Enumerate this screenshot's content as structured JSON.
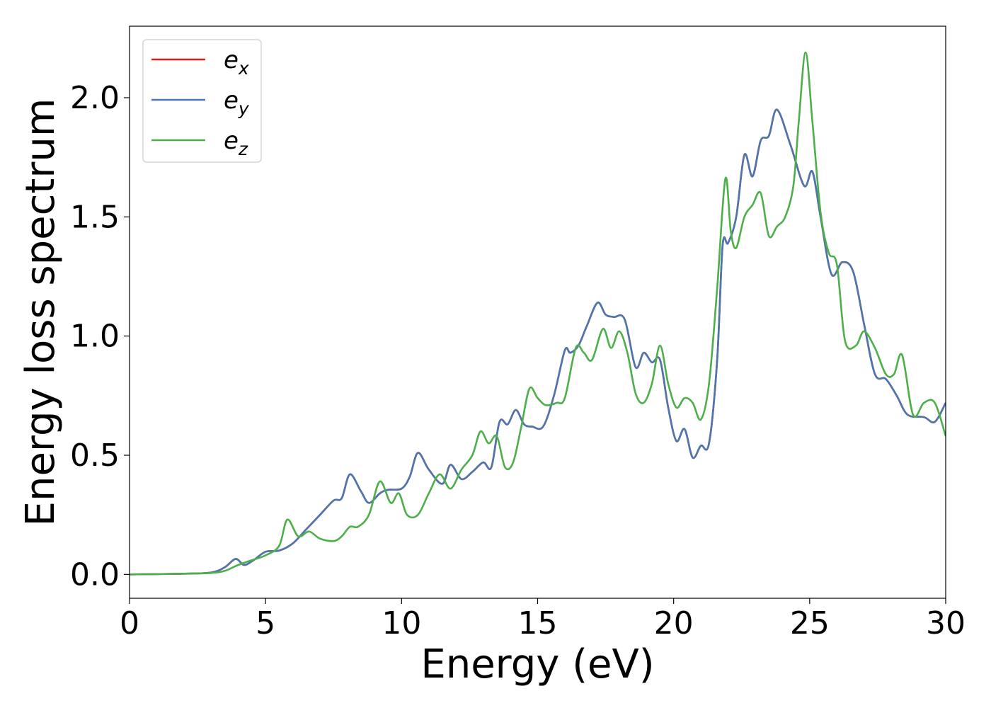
{
  "chart_data": {
    "type": "line",
    "xlabel": "Energy (eV)",
    "ylabel": "Energy loss spectrum",
    "xlim": [
      0,
      30
    ],
    "ylim": [
      -0.1,
      2.3
    ],
    "x_ticks": [
      0,
      5,
      10,
      15,
      20,
      25,
      30
    ],
    "x_tick_labels": [
      "0",
      "5",
      "10",
      "15",
      "20",
      "25",
      "30"
    ],
    "y_ticks": [
      0.0,
      0.5,
      1.0,
      1.5,
      2.0
    ],
    "y_tick_labels": [
      "0.0",
      "0.5",
      "1.0",
      "1.5",
      "2.0"
    ],
    "grid": false,
    "legend_position": "top-left",
    "series": [
      {
        "name": "e",
        "subscript": "x",
        "color": "#e41a1c",
        "x": [
          0,
          2,
          3,
          3.5,
          3.9,
          4.2,
          4.5,
          5,
          5.5,
          6,
          6.5,
          7,
          7.5,
          7.8,
          8.1,
          8.5,
          8.8,
          9.2,
          9.5,
          10,
          10.3,
          10.6,
          11,
          11.5,
          11.8,
          12.2,
          12.6,
          13,
          13.3,
          13.6,
          13.9,
          14.2,
          14.5,
          14.8,
          15.2,
          15.6,
          16,
          16.2,
          16.5,
          16.8,
          17.2,
          17.5,
          17.8,
          18.2,
          18.6,
          18.9,
          19.2,
          19.5,
          19.8,
          20.1,
          20.4,
          20.7,
          21.0,
          21.3,
          21.6,
          21.8,
          22.0,
          22.3,
          22.6,
          22.9,
          23.2,
          23.5,
          23.8,
          24.3,
          24.8,
          25.1,
          25.4,
          25.8,
          26.2,
          26.6,
          27.0,
          27.4,
          27.8,
          28.2,
          28.6,
          29.2,
          29.6,
          30
        ],
        "values": [
          0,
          0.003,
          0.008,
          0.03,
          0.065,
          0.04,
          0.055,
          0.095,
          0.1,
          0.13,
          0.19,
          0.25,
          0.31,
          0.32,
          0.42,
          0.35,
          0.3,
          0.34,
          0.355,
          0.36,
          0.41,
          0.51,
          0.44,
          0.38,
          0.46,
          0.4,
          0.43,
          0.47,
          0.45,
          0.64,
          0.63,
          0.69,
          0.63,
          0.62,
          0.62,
          0.75,
          0.94,
          0.93,
          0.96,
          1.04,
          1.14,
          1.09,
          1.08,
          1.07,
          0.87,
          0.93,
          0.89,
          0.9,
          0.7,
          0.56,
          0.61,
          0.49,
          0.54,
          0.55,
          0.9,
          1.38,
          1.39,
          1.5,
          1.76,
          1.67,
          1.82,
          1.84,
          1.95,
          1.8,
          1.63,
          1.69,
          1.5,
          1.26,
          1.31,
          1.27,
          1.05,
          0.84,
          0.82,
          0.75,
          0.67,
          0.66,
          0.64,
          0.72
        ]
      },
      {
        "name": "e",
        "subscript": "y",
        "color": "#4a77b0",
        "x": [
          0,
          2,
          3,
          3.5,
          3.9,
          4.2,
          4.5,
          5,
          5.5,
          6,
          6.5,
          7,
          7.5,
          7.8,
          8.1,
          8.5,
          8.8,
          9.2,
          9.5,
          10,
          10.3,
          10.6,
          11,
          11.5,
          11.8,
          12.2,
          12.6,
          13,
          13.3,
          13.6,
          13.9,
          14.2,
          14.5,
          14.8,
          15.2,
          15.6,
          16,
          16.2,
          16.5,
          16.8,
          17.2,
          17.5,
          17.8,
          18.2,
          18.6,
          18.9,
          19.2,
          19.5,
          19.8,
          20.1,
          20.4,
          20.7,
          21.0,
          21.3,
          21.6,
          21.8,
          22.0,
          22.3,
          22.6,
          22.9,
          23.2,
          23.5,
          23.8,
          24.3,
          24.8,
          25.1,
          25.4,
          25.8,
          26.2,
          26.6,
          27.0,
          27.4,
          27.8,
          28.2,
          28.6,
          29.2,
          29.6,
          30
        ],
        "values": [
          0,
          0.003,
          0.008,
          0.03,
          0.065,
          0.04,
          0.055,
          0.095,
          0.1,
          0.13,
          0.19,
          0.25,
          0.31,
          0.32,
          0.42,
          0.35,
          0.3,
          0.34,
          0.355,
          0.36,
          0.41,
          0.51,
          0.44,
          0.38,
          0.46,
          0.4,
          0.43,
          0.47,
          0.45,
          0.64,
          0.63,
          0.69,
          0.63,
          0.62,
          0.62,
          0.75,
          0.94,
          0.93,
          0.96,
          1.04,
          1.14,
          1.09,
          1.08,
          1.07,
          0.87,
          0.93,
          0.89,
          0.9,
          0.7,
          0.56,
          0.61,
          0.49,
          0.54,
          0.55,
          0.9,
          1.38,
          1.39,
          1.5,
          1.76,
          1.67,
          1.82,
          1.84,
          1.95,
          1.8,
          1.63,
          1.69,
          1.5,
          1.26,
          1.31,
          1.27,
          1.05,
          0.84,
          0.82,
          0.75,
          0.67,
          0.66,
          0.64,
          0.72
        ]
      },
      {
        "name": "e",
        "subscript": "z",
        "color": "#4daf4a",
        "x": [
          0,
          2,
          3,
          3.5,
          4,
          4.5,
          5,
          5.5,
          5.8,
          6.2,
          6.6,
          7,
          7.5,
          7.8,
          8.1,
          8.4,
          8.8,
          9.2,
          9.6,
          9.9,
          10.2,
          10.6,
          11,
          11.4,
          11.8,
          12.2,
          12.6,
          12.9,
          13.2,
          13.5,
          13.8,
          14.1,
          14.4,
          14.7,
          15.0,
          15.3,
          15.7,
          16.0,
          16.4,
          16.7,
          17.0,
          17.4,
          17.7,
          18.0,
          18.3,
          18.6,
          18.9,
          19.2,
          19.5,
          19.8,
          20.1,
          20.4,
          20.7,
          21.0,
          21.3,
          21.6,
          21.9,
          22.1,
          22.3,
          22.6,
          22.9,
          23.2,
          23.5,
          23.8,
          24.1,
          24.4,
          24.6,
          24.85,
          25.1,
          25.4,
          25.7,
          26.0,
          26.3,
          26.7,
          27.0,
          27.4,
          27.8,
          28.1,
          28.4,
          28.8,
          29.2,
          29.6,
          30
        ],
        "values": [
          0,
          0.003,
          0.006,
          0.015,
          0.04,
          0.06,
          0.08,
          0.12,
          0.23,
          0.16,
          0.18,
          0.15,
          0.14,
          0.16,
          0.2,
          0.2,
          0.25,
          0.39,
          0.3,
          0.34,
          0.25,
          0.25,
          0.34,
          0.42,
          0.36,
          0.44,
          0.5,
          0.6,
          0.55,
          0.58,
          0.45,
          0.47,
          0.62,
          0.78,
          0.74,
          0.71,
          0.72,
          0.74,
          0.95,
          0.93,
          0.9,
          1.03,
          0.95,
          1.02,
          0.93,
          0.76,
          0.72,
          0.8,
          0.96,
          0.8,
          0.7,
          0.74,
          0.72,
          0.65,
          0.8,
          1.2,
          1.66,
          1.44,
          1.37,
          1.5,
          1.55,
          1.6,
          1.42,
          1.46,
          1.5,
          1.63,
          1.9,
          2.19,
          1.9,
          1.52,
          1.35,
          1.3,
          0.98,
          0.96,
          1.02,
          0.95,
          0.84,
          0.84,
          0.92,
          0.67,
          0.72,
          0.72,
          0.58
        ]
      }
    ]
  }
}
